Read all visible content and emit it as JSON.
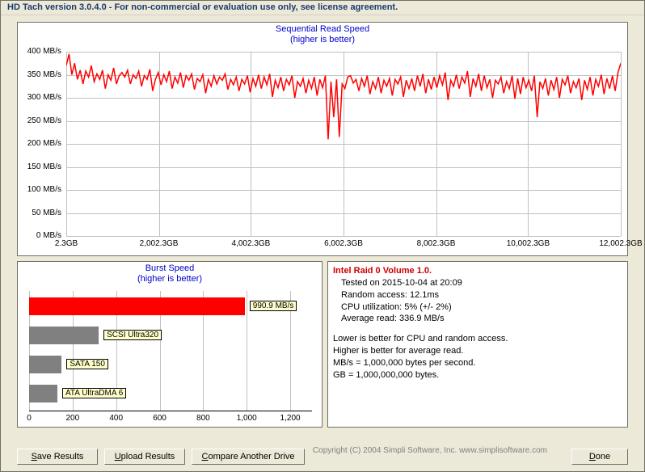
{
  "window": {
    "title": "HD Tach version 3.0.4.0  - For non-commercial or evaluation use only, see license agreement."
  },
  "seq_chart": {
    "title_line1": "Sequential Read Speed",
    "title_line2": "(higher is better)",
    "type": "line",
    "title_color": "#0000cc",
    "line_color": "#ff0000",
    "line_width": 1.5,
    "grid_color": "#c0c0c0",
    "background_color": "#ffffff",
    "ylim": [
      0,
      400
    ],
    "ytick_step": 50,
    "y_unit": "MB/s",
    "x_ticks": [
      "2.3GB",
      "2,002.3GB",
      "4,002.3GB",
      "6,002.3GB",
      "8,002.3GB",
      "10,002.3GB",
      "12,002.3GB"
    ],
    "x_tick_positions": [
      0,
      0.167,
      0.333,
      0.5,
      0.667,
      0.833,
      1.0
    ],
    "values": [
      370,
      395,
      350,
      375,
      340,
      360,
      330,
      358,
      345,
      370,
      335,
      352,
      340,
      360,
      320,
      350,
      338,
      365,
      330,
      348,
      355,
      345,
      360,
      330,
      350,
      342,
      358,
      325,
      348,
      340,
      362,
      315,
      340,
      355,
      328,
      350,
      335,
      358,
      320,
      345,
      332,
      355,
      322,
      348,
      338,
      352,
      318,
      342,
      335,
      350,
      310,
      340,
      325,
      348,
      330,
      345,
      338,
      352,
      318,
      340,
      328,
      345,
      315,
      340,
      330,
      348,
      312,
      342,
      325,
      350,
      320,
      345,
      328,
      352,
      302,
      338,
      322,
      345,
      315,
      340,
      328,
      348,
      300,
      335,
      325,
      342,
      310,
      338,
      320,
      345,
      305,
      340,
      322,
      348,
      210,
      335,
      258,
      340,
      215,
      330,
      320,
      345,
      348,
      332,
      340,
      315,
      342,
      325,
      348,
      308,
      335,
      320,
      345,
      310,
      338,
      325,
      342,
      305,
      340,
      330,
      345,
      302,
      338,
      320,
      342,
      315,
      348,
      325,
      352,
      310,
      340,
      318,
      345,
      322,
      348,
      328,
      355,
      295,
      338,
      325,
      350,
      320,
      345,
      332,
      358,
      302,
      342,
      325,
      352,
      315,
      348,
      322,
      340,
      300,
      338,
      330,
      345,
      310,
      335,
      320,
      348,
      298,
      342,
      308,
      345,
      322,
      338,
      315,
      348,
      258,
      335,
      320,
      342,
      305,
      338,
      318,
      345,
      300,
      340,
      328,
      348,
      310,
      335,
      322,
      342,
      295,
      338,
      318,
      345,
      305,
      340,
      325,
      350,
      308,
      342,
      320,
      348,
      315,
      355,
      375
    ]
  },
  "burst_chart": {
    "title_line1": "Burst Speed",
    "title_line2": "(higher is better)",
    "type": "bar",
    "title_color": "#0000cc",
    "grid_color": "#c0c0c0",
    "background_color": "#ffffff",
    "xlim": [
      0,
      1300
    ],
    "xtick_step": 200,
    "bars": [
      {
        "label": "990.9 MB/s",
        "value": 990.9,
        "color": "#ff0000",
        "label_bg": "#ffffcc"
      },
      {
        "label": "SCSI Ultra320",
        "value": 320,
        "color": "#808080",
        "label_bg": "#ffffcc"
      },
      {
        "label": "SATA 150",
        "value": 150,
        "color": "#808080",
        "label_bg": "#ffffcc"
      },
      {
        "label": "ATA UltraDMA 6",
        "value": 130,
        "color": "#808080",
        "label_bg": "#ffffcc"
      }
    ]
  },
  "info": {
    "device": "Intel Raid 0 Volume 1.0.",
    "tested": "Tested on 2015-10-04 at 20:09",
    "random": "Random access: 12.1ms",
    "cpu": "CPU utilization: 5% (+/- 2%)",
    "avg": "Average read: 336.9 MB/s",
    "note1": "Lower is better for CPU and random access.",
    "note2": "Higher is better for average read.",
    "note3": "MB/s = 1,000,000 bytes per second.",
    "note4": "GB = 1,000,000,000 bytes."
  },
  "buttons": {
    "save": "Save Results",
    "upload": "Upload Results",
    "compare": "Compare Another Drive",
    "done": "Done"
  },
  "copyright": "Copyright (C) 2004 Simpli Software, Inc. www.simplisoftware.com"
}
